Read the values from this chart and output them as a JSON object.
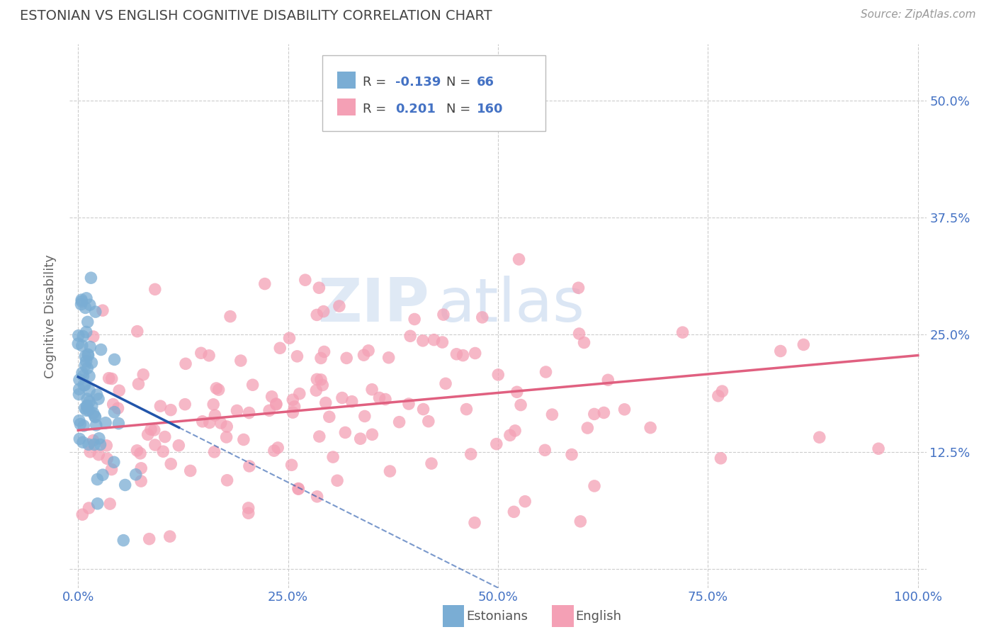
{
  "title": "ESTONIAN VS ENGLISH COGNITIVE DISABILITY CORRELATION CHART",
  "source": "Source: ZipAtlas.com",
  "ylabel": "Cognitive Disability",
  "r_estonian": -0.139,
  "n_estonian": 66,
  "r_english": 0.201,
  "n_english": 160,
  "estonian_color": "#7aadd4",
  "english_color": "#f4a0b5",
  "estonian_line_color": "#2255aa",
  "english_line_color": "#e06080",
  "xlim": [
    -0.01,
    1.01
  ],
  "ylim": [
    -0.02,
    0.56
  ],
  "xticks": [
    0.0,
    0.25,
    0.5,
    0.75,
    1.0
  ],
  "yticks": [
    0.0,
    0.125,
    0.25,
    0.375,
    0.5
  ],
  "xtick_labels": [
    "0.0%",
    "25.0%",
    "50.0%",
    "75.0%",
    "100.0%"
  ],
  "right_ytick_labels": [
    "",
    "12.5%",
    "25.0%",
    "37.5%",
    "50.0%"
  ],
  "watermark_zip": "ZIP",
  "watermark_atlas": "atlas",
  "background_color": "#ffffff",
  "grid_color": "#cccccc",
  "title_color": "#444444",
  "axis_label_color": "#666666",
  "tick_color": "#4472c4",
  "seed": 7
}
